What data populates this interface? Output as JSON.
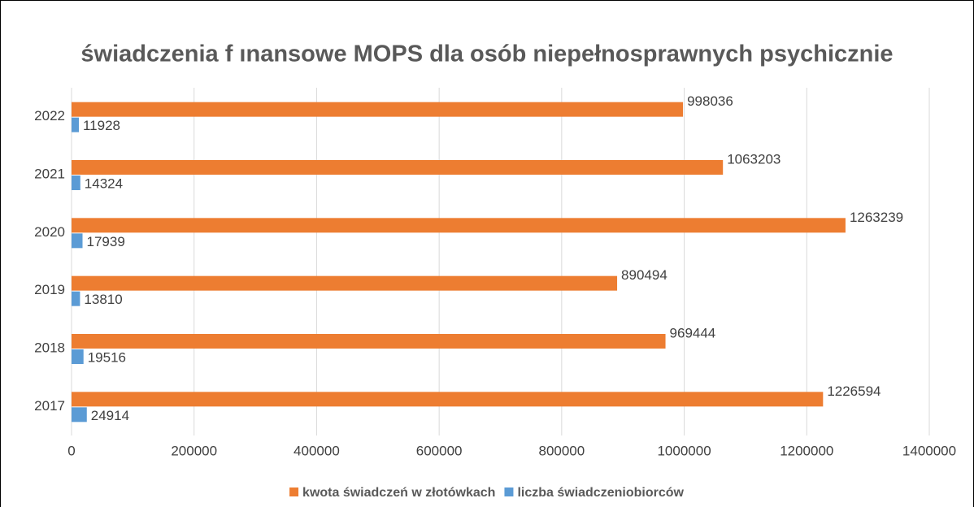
{
  "chart_data": {
    "type": "barh",
    "title": "świadczenia f ınansowe MOPS dla osób niepełnosprawnych psychicznie",
    "categories": [
      "2017",
      "2018",
      "2019",
      "2020",
      "2021",
      "2022"
    ],
    "series": [
      {
        "name": "kwota świadczeń w złotówkach",
        "color": "#ed7d31",
        "values": [
          1226594,
          969444,
          890494,
          1263239,
          1063203,
          998036
        ]
      },
      {
        "name": "liczba świadczeniobiorców",
        "color": "#5b9bd5",
        "values": [
          24914,
          19516,
          13810,
          17939,
          14324,
          11928
        ]
      }
    ],
    "xlim": [
      0,
      1400000
    ],
    "xticks": [
      0,
      200000,
      400000,
      600000,
      800000,
      1000000,
      1200000,
      1400000
    ],
    "grid": true,
    "legend": "bottom"
  }
}
